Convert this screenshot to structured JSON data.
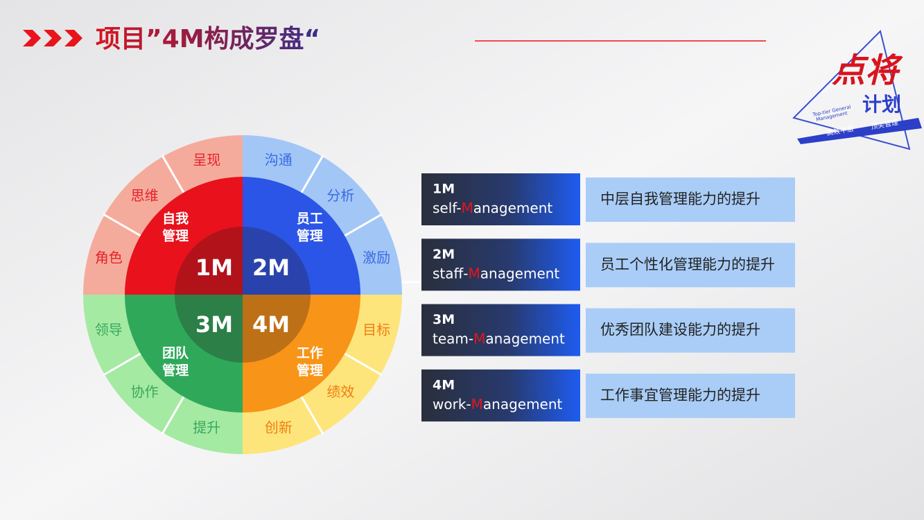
{
  "header": {
    "title": "项目”4M构成罗盘“"
  },
  "logo": {
    "main": "点将",
    "sub": "计划",
    "english_1": "Top-tier General",
    "english_2": "Management",
    "tag_1": "高效中层",
    "tag_2": "顶尖管理"
  },
  "compass": {
    "quadrants": [
      {
        "code": "1M",
        "name_lines": [
          "自我",
          "管理"
        ],
        "aspects": [
          "呈现",
          "思维",
          "角色"
        ]
      },
      {
        "code": "2M",
        "name_lines": [
          "员工",
          "管理"
        ],
        "aspects": [
          "沟通",
          "分析",
          "激励"
        ]
      },
      {
        "code": "3M",
        "name_lines": [
          "团队",
          "管理"
        ],
        "aspects": [
          "领导",
          "协作",
          "提升"
        ]
      },
      {
        "code": "4M",
        "name_lines": [
          "工作",
          "管理"
        ],
        "aspects": [
          "目标",
          "绩效",
          "创新"
        ]
      }
    ]
  },
  "rows": [
    {
      "code": "1M",
      "prefix": "self-",
      "letter": "M",
      "suffix": "anagement",
      "description": "中层自我管理能力的提升"
    },
    {
      "code": "2M",
      "prefix": "staff-",
      "letter": "M",
      "suffix": "anagement",
      "description": "员工个性化管理能力的提升"
    },
    {
      "code": "3M",
      "prefix": "team-",
      "letter": "M",
      "suffix": "anagement",
      "description": "优秀团队建设能力的提升"
    },
    {
      "code": "4M",
      "prefix": "work-",
      "letter": "M",
      "suffix": "anagement",
      "description": "工作事宜管理能力的提升"
    }
  ]
}
